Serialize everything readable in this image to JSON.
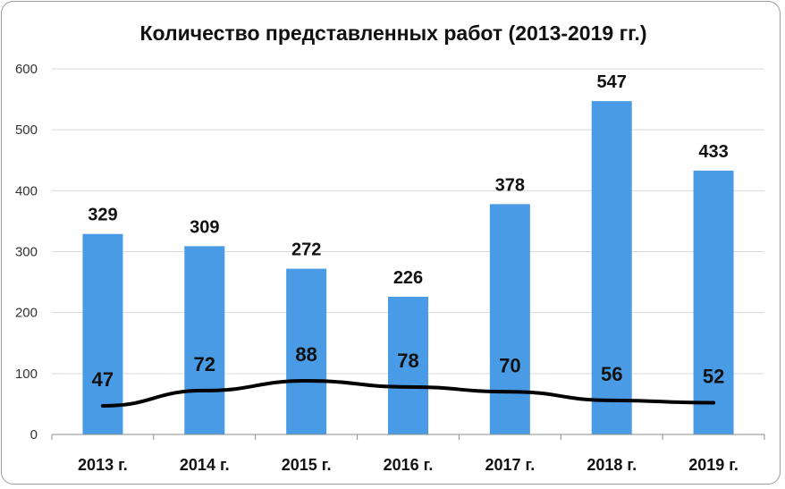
{
  "chart_data": {
    "type": "bar",
    "title": "Количество представленных работ (2013-2019 гг.)",
    "xlabel": "",
    "ylabel": "",
    "categories": [
      "2013 г.",
      "2014 г.",
      "2015 г.",
      "2016 г.",
      "2017 г.",
      "2018 г.",
      "2019 г."
    ],
    "ylim": [
      0,
      600
    ],
    "yticks": [
      0,
      100,
      200,
      300,
      400,
      500,
      600
    ],
    "grid": true,
    "legend": "none",
    "series": [
      {
        "type": "bar",
        "values": [
          329,
          309,
          272,
          226,
          378,
          547,
          433
        ],
        "color": "#4a9be6"
      },
      {
        "type": "line",
        "values": [
          47,
          72,
          88,
          78,
          70,
          56,
          52
        ],
        "color": "#000000"
      }
    ]
  }
}
